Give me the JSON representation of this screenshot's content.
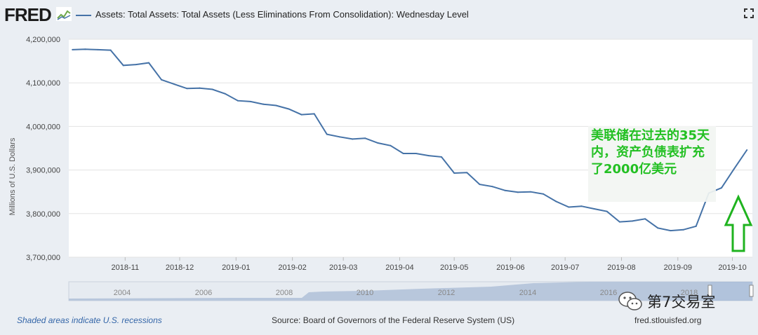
{
  "header": {
    "logo_text": "FRED",
    "series_title": "Assets: Total Assets: Total Assets (Less Eliminations From Consolidation): Wednesday Level",
    "series_color": "#4572a7",
    "fullscreen_icon": "fullscreen-icon"
  },
  "chart_data": {
    "type": "line",
    "ylabel": "Millions of U.S. Dollars",
    "ylim": [
      3700000,
      4200000
    ],
    "y_ticks": [
      "4,200,000",
      "4,100,000",
      "4,000,000",
      "3,900,000",
      "3,800,000",
      "3,700,000"
    ],
    "x_ticks": [
      "2018-11",
      "2018-12",
      "2019-01",
      "2019-02",
      "2019-03",
      "2019-04",
      "2019-05",
      "2019-06",
      "2019-07",
      "2019-08",
      "2019-09",
      "2019-10"
    ],
    "x": [
      "2018-10-03",
      "2018-10-10",
      "2018-10-17",
      "2018-10-24",
      "2018-10-31",
      "2018-11-07",
      "2018-11-14",
      "2018-11-21",
      "2018-11-28",
      "2018-12-05",
      "2018-12-12",
      "2018-12-19",
      "2018-12-26",
      "2019-01-02",
      "2019-01-09",
      "2019-01-16",
      "2019-01-23",
      "2019-01-30",
      "2019-02-06",
      "2019-02-13",
      "2019-02-20",
      "2019-02-27",
      "2019-03-06",
      "2019-03-13",
      "2019-03-20",
      "2019-03-27",
      "2019-04-03",
      "2019-04-10",
      "2019-04-17",
      "2019-04-24",
      "2019-05-01",
      "2019-05-08",
      "2019-05-15",
      "2019-05-22",
      "2019-05-29",
      "2019-06-05",
      "2019-06-12",
      "2019-06-19",
      "2019-06-26",
      "2019-07-03",
      "2019-07-10",
      "2019-07-17",
      "2019-07-24",
      "2019-07-31",
      "2019-08-07",
      "2019-08-14",
      "2019-08-21",
      "2019-08-28",
      "2019-09-04",
      "2019-09-11",
      "2019-09-18",
      "2019-09-25",
      "2019-10-02",
      "2019-10-09"
    ],
    "values": [
      4176000,
      4177000,
      4176000,
      4175000,
      4140000,
      4142000,
      4146000,
      4107000,
      4097000,
      4087000,
      4088000,
      4085000,
      4075000,
      4059000,
      4057000,
      4051000,
      4048000,
      4040000,
      4027000,
      4029000,
      3982000,
      3976000,
      3971000,
      3973000,
      3962000,
      3956000,
      3938000,
      3938000,
      3933000,
      3930000,
      3893000,
      3894000,
      3867000,
      3862000,
      3853000,
      3849000,
      3850000,
      3845000,
      3828000,
      3815000,
      3817000,
      3811000,
      3805000,
      3781000,
      3783000,
      3788000,
      3767000,
      3761000,
      3763000,
      3771000,
      3847000,
      3859000,
      3903000,
      3946000
    ],
    "grid": true,
    "legend": "top-left",
    "navigator": {
      "labels": [
        "2004",
        "2006",
        "2008",
        "2010",
        "2012",
        "2014",
        "2016",
        "2018"
      ]
    }
  },
  "annotation": {
    "text": "美联储在过去的35天内，资产负债表扩充了2000亿美元",
    "color": "#23c023",
    "arrow_color": "#1fb31f"
  },
  "footer": {
    "recessions_link": "Shaded areas indicate U.S. recessions",
    "source": "Source: Board of Governors of the Federal Reserve System (US)",
    "url": "fred.stlouisfed.org"
  },
  "watermark": {
    "text": "第7交易室",
    "icon": "wechat-icon"
  }
}
